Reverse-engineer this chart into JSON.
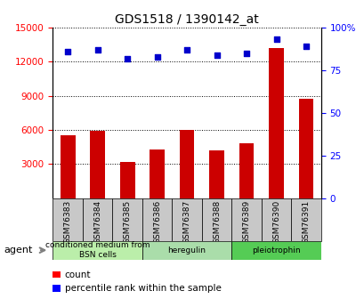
{
  "title": "GDS1518 / 1390142_at",
  "categories": [
    "GSM76383",
    "GSM76384",
    "GSM76385",
    "GSM76386",
    "GSM76387",
    "GSM76388",
    "GSM76389",
    "GSM76390",
    "GSM76391"
  ],
  "count_values": [
    5500,
    5900,
    3200,
    4300,
    6000,
    4200,
    4800,
    13200,
    8700
  ],
  "percentile_values": [
    86,
    87,
    82,
    83,
    87,
    84,
    85,
    93,
    89
  ],
  "ylim_left": [
    0,
    15000
  ],
  "ylim_right": [
    0,
    100
  ],
  "yticks_left": [
    3000,
    6000,
    9000,
    12000,
    15000
  ],
  "yticks_right": [
    0,
    25,
    50,
    75,
    100
  ],
  "agent_groups": [
    {
      "label": "conditioned medium from\nBSN cells",
      "start": 0,
      "end": 3,
      "color": "#bbeeaa"
    },
    {
      "label": "heregulin",
      "start": 3,
      "end": 6,
      "color": "#aaddaa"
    },
    {
      "label": "pleiotrophin",
      "start": 6,
      "end": 9,
      "color": "#55cc55"
    }
  ],
  "bar_color": "#cc0000",
  "dot_color": "#0000cc",
  "bar_width": 0.5,
  "bg_color": "#c8c8c8",
  "plot_bg": "#ffffff",
  "legend_red_label": "count",
  "legend_blue_label": "percentile rank within the sample",
  "agent_label_color": "#555555"
}
